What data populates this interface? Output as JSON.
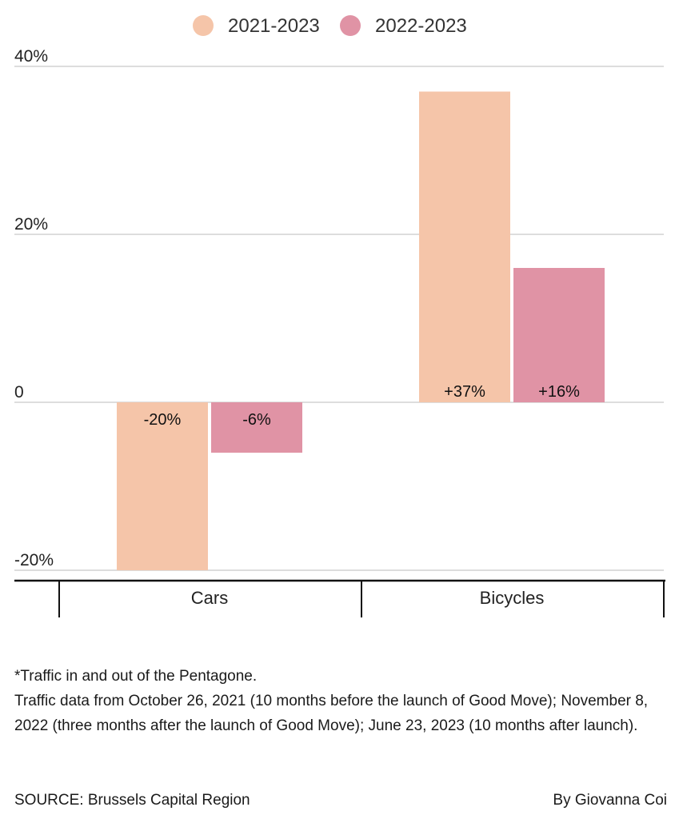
{
  "chart_data": {
    "type": "bar",
    "categories": [
      "Cars",
      "Bicycles"
    ],
    "series": [
      {
        "name": "2021-2023",
        "values": [
          -20,
          37
        ],
        "labels": [
          "-20%",
          "+37%"
        ],
        "color": "#f5c5a9"
      },
      {
        "name": "2022-2023",
        "values": [
          -6,
          16
        ],
        "labels": [
          "-6%",
          "+16%"
        ],
        "color": "#e093a5"
      }
    ],
    "ylim": [
      -20,
      40
    ],
    "yticks": [
      {
        "value": 40,
        "label": "40%"
      },
      {
        "value": 20,
        "label": "20%"
      },
      {
        "value": 0,
        "label": "0"
      },
      {
        "value": -20,
        "label": "-20%"
      }
    ],
    "grid": true,
    "legend_position": "top-center",
    "xlabel": "",
    "ylabel": ""
  },
  "notes": [
    "*Traffic in and out of the Pentagone.",
    "Traffic data from October 26, 2021 (10 months before the launch of Good Move); November 8, 2022 (three months after the launch of Good Move); June 23, 2023 (10 months after launch)."
  ],
  "source": "SOURCE: Brussels Capital Region",
  "credit": "By Giovanna Coi"
}
